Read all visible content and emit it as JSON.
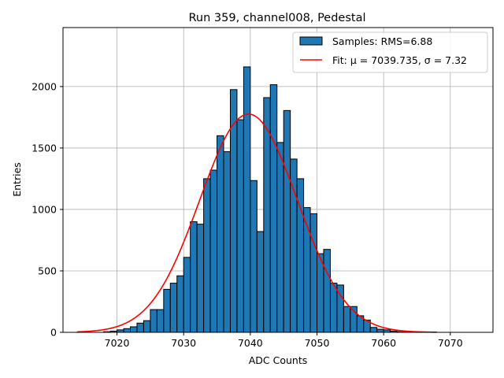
{
  "chart_data": {
    "type": "bar",
    "title": "Run 359, channel008, Pedestal",
    "xlabel": "ADC Counts",
    "ylabel": "Entries",
    "xlim": [
      7011.9,
      7076.4
    ],
    "ylim": [
      0,
      2480
    ],
    "xticks": [
      7020,
      7030,
      7040,
      7050,
      7060,
      7070
    ],
    "yticks": [
      0,
      500,
      1000,
      1500,
      2000
    ],
    "grid": true,
    "legend_position": "upper-right",
    "bin_width": 1,
    "bins_left": [
      7018,
      7019,
      7020,
      7021,
      7022,
      7023,
      7024,
      7025,
      7026,
      7027,
      7028,
      7029,
      7030,
      7031,
      7032,
      7033,
      7034,
      7035,
      7036,
      7037,
      7038,
      7039,
      7040,
      7041,
      7042,
      7043,
      7044,
      7045,
      7046,
      7047,
      7048,
      7049,
      7050,
      7051,
      7052,
      7053,
      7054,
      7055,
      7056,
      7057,
      7058,
      7059,
      7060,
      7061,
      7062,
      7063
    ],
    "counts": [
      5,
      10,
      20,
      30,
      45,
      75,
      95,
      185,
      185,
      350,
      400,
      460,
      610,
      900,
      880,
      1250,
      1320,
      1600,
      1470,
      1975,
      1730,
      2160,
      1235,
      820,
      1910,
      2015,
      1545,
      1805,
      1410,
      1250,
      1015,
      965,
      640,
      675,
      400,
      385,
      210,
      210,
      135,
      100,
      40,
      25,
      20,
      10,
      5,
      5
    ],
    "fit": {
      "mu": 7039.735,
      "sigma": 7.32,
      "x_range": [
        7014,
        7068
      ]
    },
    "legend": [
      {
        "label": "Samples: RMS=6.88",
        "kind": "patch",
        "color": "#1f77b4"
      },
      {
        "label": "Fit: μ = 7039.735, σ = 7.32",
        "kind": "line",
        "color": "#ff0000"
      }
    ],
    "colors": {
      "bar_fill": "#1f77b4",
      "bar_edge": "#000000",
      "fit_line": "#ff0000",
      "grid": "#b0b0b0"
    }
  }
}
